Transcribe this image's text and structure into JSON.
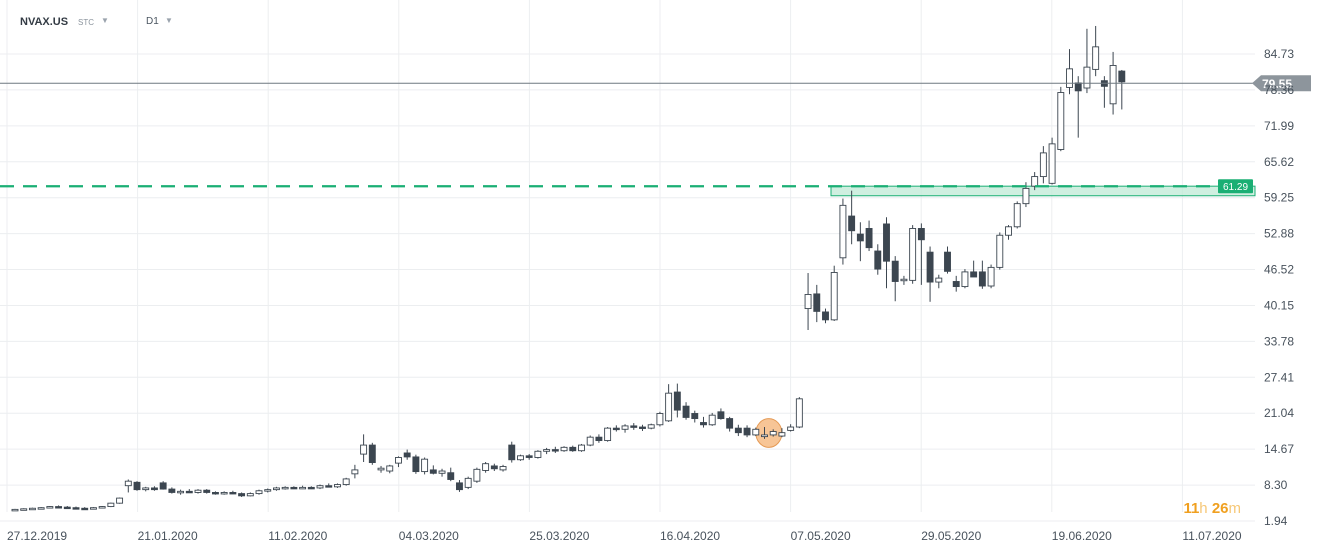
{
  "toolbar": {
    "symbol": "NVAX.US",
    "symbol_type": "STC",
    "timeframe": "D1"
  },
  "countdown": {
    "hours": "11",
    "hours_unit": "h",
    "minutes": "26",
    "minutes_unit": "m"
  },
  "colors": {
    "bull": "#ffffff",
    "bear": "#3c4650",
    "outline": "#3c4650",
    "support": "#1aaf74",
    "zone": "#bfead6",
    "highlight": "#f5b67c",
    "price_badge": "#8d959c",
    "grid": "#eceef0"
  },
  "chart_data": {
    "type": "candlestick",
    "y_ticks": [
      "84.73",
      "78.36",
      "71.99",
      "65.62",
      "59.25",
      "52.88",
      "46.52",
      "40.15",
      "33.78",
      "27.41",
      "21.04",
      "14.67",
      "8.30",
      "1.94"
    ],
    "ylim": [
      1.94,
      84.73
    ],
    "x_ticks": [
      "27.12.2019",
      "21.01.2020",
      "11.02.2020",
      "04.03.2020",
      "25.03.2020",
      "16.04.2020",
      "07.05.2020",
      "29.05.2020",
      "19.06.2020",
      "11.07.2020"
    ],
    "current_price": "79.55",
    "support_level": "61.29",
    "support_zone": [
      59.6,
      61.3
    ],
    "highlight_candle_indexes": [
      86,
      87
    ],
    "candles": [
      [
        3.9,
        4.1,
        3.8,
        4.0
      ],
      [
        4.0,
        4.2,
        3.9,
        4.1
      ],
      [
        4.1,
        4.3,
        4.0,
        4.2
      ],
      [
        4.2,
        4.4,
        4.1,
        4.3
      ],
      [
        4.3,
        4.6,
        4.2,
        4.5
      ],
      [
        4.5,
        4.7,
        4.3,
        4.4
      ],
      [
        4.4,
        4.6,
        4.2,
        4.3
      ],
      [
        4.3,
        4.5,
        4.1,
        4.2
      ],
      [
        4.2,
        4.4,
        4.0,
        4.1
      ],
      [
        4.1,
        4.4,
        4.0,
        4.3
      ],
      [
        4.3,
        4.6,
        4.2,
        4.5
      ],
      [
        4.5,
        5.2,
        4.4,
        5.1
      ],
      [
        5.1,
        6.1,
        5.0,
        6.0
      ],
      [
        8.2,
        9.3,
        7.0,
        9.0
      ],
      [
        8.8,
        9.0,
        7.3,
        7.5
      ],
      [
        7.5,
        8.0,
        7.2,
        7.8
      ],
      [
        7.8,
        8.1,
        7.3,
        7.5
      ],
      [
        8.7,
        9.0,
        7.5,
        7.6
      ],
      [
        7.6,
        7.9,
        6.8,
        7.0
      ],
      [
        7.0,
        7.5,
        6.6,
        7.2
      ],
      [
        7.2,
        7.6,
        6.9,
        7.0
      ],
      [
        7.0,
        7.6,
        6.8,
        7.4
      ],
      [
        7.4,
        7.6,
        6.8,
        7.0
      ],
      [
        7.0,
        7.2,
        6.6,
        6.9
      ],
      [
        6.9,
        7.2,
        6.6,
        7.0
      ],
      [
        7.0,
        7.3,
        6.7,
        6.8
      ],
      [
        6.8,
        7.0,
        6.2,
        6.4
      ],
      [
        6.4,
        7.0,
        6.3,
        6.8
      ],
      [
        6.8,
        7.5,
        6.6,
        7.3
      ],
      [
        7.3,
        7.7,
        7.0,
        7.5
      ],
      [
        7.5,
        8.0,
        7.3,
        7.8
      ],
      [
        7.8,
        8.1,
        7.5,
        7.9
      ],
      [
        7.9,
        8.1,
        7.6,
        7.8
      ],
      [
        7.8,
        8.2,
        7.6,
        7.9
      ],
      [
        7.9,
        8.1,
        7.6,
        7.8
      ],
      [
        7.8,
        8.4,
        7.6,
        8.2
      ],
      [
        8.2,
        8.6,
        7.9,
        8.0
      ],
      [
        8.0,
        8.6,
        7.8,
        8.4
      ],
      [
        8.4,
        9.6,
        8.2,
        9.4
      ],
      [
        10.3,
        11.9,
        9.5,
        11.0
      ],
      [
        13.8,
        17.3,
        12.4,
        15.4
      ],
      [
        15.4,
        15.8,
        11.9,
        12.3
      ],
      [
        11.0,
        11.7,
        10.5,
        11.3
      ],
      [
        10.8,
        11.9,
        10.4,
        11.7
      ],
      [
        12.2,
        13.4,
        11.5,
        13.2
      ],
      [
        14.0,
        14.6,
        12.8,
        13.3
      ],
      [
        13.3,
        13.7,
        10.3,
        10.7
      ],
      [
        10.7,
        13.2,
        10.2,
        12.9
      ],
      [
        11.0,
        11.8,
        10.2,
        10.4
      ],
      [
        10.4,
        11.2,
        9.8,
        10.8
      ],
      [
        10.5,
        11.4,
        9.0,
        9.3
      ],
      [
        8.7,
        9.2,
        7.1,
        7.5
      ],
      [
        7.9,
        9.8,
        7.6,
        9.5
      ],
      [
        9.0,
        11.4,
        8.7,
        11.1
      ],
      [
        10.9,
        12.4,
        10.5,
        12.1
      ],
      [
        11.7,
        12.1,
        10.8,
        11.2
      ],
      [
        11.0,
        11.9,
        10.7,
        11.6
      ],
      [
        15.4,
        16.0,
        12.3,
        12.8
      ],
      [
        12.8,
        13.7,
        12.6,
        13.5
      ],
      [
        13.5,
        13.8,
        12.8,
        13.2
      ],
      [
        13.2,
        14.5,
        13.0,
        14.3
      ],
      [
        14.3,
        14.9,
        13.8,
        14.6
      ],
      [
        14.6,
        15.1,
        14.0,
        14.4
      ],
      [
        14.4,
        15.2,
        14.2,
        15.0
      ],
      [
        15.0,
        15.3,
        14.2,
        14.4
      ],
      [
        14.4,
        15.6,
        14.2,
        15.4
      ],
      [
        15.4,
        17.1,
        15.2,
        16.8
      ],
      [
        16.8,
        17.3,
        15.8,
        16.2
      ],
      [
        16.2,
        18.6,
        16.0,
        18.4
      ],
      [
        18.4,
        18.9,
        17.8,
        18.2
      ],
      [
        18.2,
        19.1,
        17.6,
        18.8
      ],
      [
        18.8,
        19.3,
        18.1,
        18.6
      ],
      [
        18.6,
        19.0,
        17.9,
        18.4
      ],
      [
        18.4,
        19.2,
        18.2,
        19.0
      ],
      [
        19.0,
        21.3,
        18.7,
        21.0
      ],
      [
        19.7,
        26.2,
        19.5,
        24.6
      ],
      [
        24.8,
        26.3,
        20.3,
        21.6
      ],
      [
        22.3,
        23.0,
        19.9,
        20.3
      ],
      [
        21.0,
        21.5,
        19.4,
        20.1
      ],
      [
        19.4,
        20.4,
        18.5,
        19.0
      ],
      [
        19.0,
        21.1,
        18.8,
        20.7
      ],
      [
        21.3,
        21.9,
        19.9,
        20.1
      ],
      [
        20.1,
        20.4,
        17.8,
        18.4
      ],
      [
        18.4,
        19.0,
        17.0,
        17.6
      ],
      [
        18.4,
        18.9,
        16.8,
        17.2
      ],
      [
        17.2,
        18.5,
        17.0,
        18.2
      ],
      [
        16.9,
        18.6,
        16.5,
        17.2
      ],
      [
        17.2,
        18.2,
        16.9,
        17.8
      ],
      [
        17.0,
        18.4,
        16.8,
        17.6
      ],
      [
        18.0,
        19.1,
        17.8,
        18.6
      ],
      [
        18.6,
        23.9,
        18.4,
        23.6
      ],
      [
        39.6,
        45.9,
        35.8,
        42.1
      ],
      [
        42.2,
        43.8,
        37.2,
        39.1
      ],
      [
        39.0,
        39.6,
        37.0,
        37.6
      ],
      [
        37.6,
        47.2,
        37.4,
        46.0
      ],
      [
        48.6,
        59.1,
        47.4,
        57.9
      ],
      [
        56.0,
        60.5,
        51.0,
        53.4
      ],
      [
        52.8,
        54.9,
        48.0,
        51.6
      ],
      [
        53.8,
        55.2,
        49.8,
        50.4
      ],
      [
        49.8,
        51.0,
        45.6,
        46.6
      ],
      [
        54.6,
        55.8,
        43.2,
        48.0
      ],
      [
        48.0,
        48.9,
        40.9,
        44.4
      ],
      [
        44.6,
        45.4,
        43.8,
        44.8
      ],
      [
        44.6,
        54.4,
        44.0,
        53.8
      ],
      [
        53.8,
        54.7,
        43.8,
        51.8
      ],
      [
        49.6,
        50.6,
        40.8,
        44.3
      ],
      [
        44.3,
        45.6,
        43.2,
        45.0
      ],
      [
        49.6,
        50.6,
        45.8,
        46.2
      ],
      [
        44.4,
        45.4,
        42.6,
        43.5
      ],
      [
        43.5,
        46.6,
        43.2,
        46.1
      ],
      [
        46.1,
        48.1,
        45.2,
        45.2
      ],
      [
        46.1,
        48.1,
        43.1,
        43.6
      ],
      [
        43.6,
        47.4,
        43.2,
        46.9
      ],
      [
        46.9,
        53.1,
        46.5,
        52.6
      ],
      [
        52.6,
        54.4,
        51.8,
        54.1
      ],
      [
        54.1,
        58.6,
        53.8,
        58.2
      ],
      [
        58.2,
        62.0,
        57.6,
        60.9
      ],
      [
        61.3,
        63.8,
        60.6,
        63.0
      ],
      [
        63.0,
        68.4,
        61.8,
        67.2
      ],
      [
        61.8,
        69.9,
        61.6,
        68.8
      ],
      [
        67.8,
        78.9,
        67.5,
        77.9
      ],
      [
        78.8,
        85.6,
        77.6,
        82.1
      ],
      [
        79.6,
        80.8,
        69.9,
        78.2
      ],
      [
        78.7,
        89.2,
        77.8,
        82.4
      ],
      [
        82.0,
        89.7,
        80.8,
        86.0
      ],
      [
        80.0,
        80.8,
        75.2,
        79.0
      ],
      [
        75.9,
        85.1,
        74.0,
        82.7
      ],
      [
        81.7,
        81.9,
        74.9,
        79.8
      ]
    ]
  }
}
